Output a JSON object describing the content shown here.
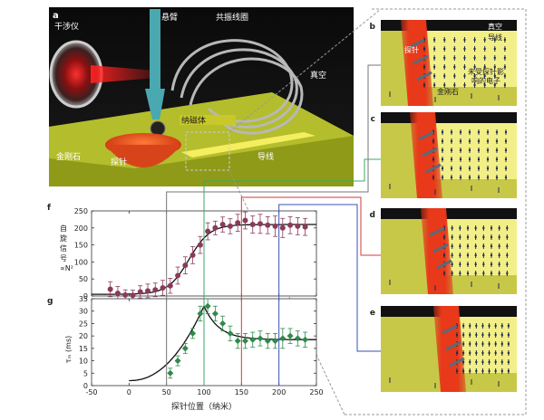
{
  "panel_a": {
    "letter": "a",
    "labels": {
      "interferometer": "干涉仪",
      "cantilever": "悬臂",
      "resonant_coil": "共振线圈",
      "vacuum": "真空",
      "magnet": "纳磁体",
      "diamond": "金刚石",
      "probe": "探针",
      "wire": "导线"
    }
  },
  "side_panels": [
    {
      "letter": "b",
      "vacuum": "真空",
      "wire": "导线",
      "probe": "探针",
      "note": "未受探针影响的电子",
      "diamond": "金刚石"
    },
    {
      "letter": "c"
    },
    {
      "letter": "d"
    },
    {
      "letter": "e"
    }
  ],
  "panel_f": {
    "letter": "f",
    "ylabel": "自旋信号 ∝N²",
    "yticks": [
      0,
      50,
      100,
      150,
      200,
      250
    ]
  },
  "panel_g": {
    "letter": "g",
    "ylabel": "τₘ (ms)",
    "yticks": [
      0,
      5,
      10,
      15,
      20,
      25,
      30,
      35
    ]
  },
  "xaxis": {
    "xlabel": "探针位置（纳米）",
    "xticks": [
      -50,
      0,
      50,
      100,
      150,
      200,
      250
    ]
  },
  "colors": {
    "f_series": "#8a3a5a",
    "g_series": "#2f8a4a",
    "link_b": "#777777",
    "link_c": "#3aa866",
    "link_d": "#d13b3b",
    "link_e": "#3a4fb5"
  },
  "chart_data": [
    {
      "type": "scatter",
      "panel": "f",
      "ylabel": "自旋信号 ∝N²",
      "xlim": [
        -50,
        250
      ],
      "ylim": [
        0,
        250
      ],
      "x": [
        -25,
        -15,
        -5,
        5,
        15,
        25,
        35,
        45,
        55,
        65,
        75,
        85,
        95,
        105,
        115,
        125,
        135,
        145,
        155,
        165,
        175,
        185,
        195,
        205,
        215,
        225,
        235
      ],
      "values": [
        20,
        8,
        3,
        2,
        12,
        15,
        18,
        24,
        30,
        60,
        90,
        120,
        150,
        190,
        200,
        210,
        205,
        215,
        222,
        210,
        212,
        208,
        205,
        200,
        208,
        205,
        203
      ],
      "errors": [
        22,
        20,
        15,
        15,
        18,
        20,
        20,
        22,
        22,
        25,
        25,
        25,
        25,
        25,
        20,
        22,
        22,
        25,
        25,
        25,
        28,
        25,
        30,
        28,
        25,
        25,
        25
      ]
    },
    {
      "type": "scatter",
      "panel": "g",
      "ylabel": "τₘ (ms)",
      "xlim": [
        -50,
        250
      ],
      "ylim": [
        0,
        35
      ],
      "x": [
        55,
        65,
        75,
        85,
        95,
        105,
        115,
        125,
        135,
        145,
        155,
        165,
        175,
        185,
        195,
        205,
        215,
        225,
        235
      ],
      "values": [
        5,
        10,
        15,
        21,
        29,
        32,
        29,
        25,
        21,
        18,
        18,
        18.5,
        19,
        18,
        18,
        19,
        20,
        19,
        18.5
      ],
      "errors": [
        2,
        2,
        2,
        2,
        3,
        3,
        3,
        3,
        3,
        3,
        3,
        3,
        3,
        3,
        3,
        4,
        3,
        3,
        3
      ]
    }
  ]
}
